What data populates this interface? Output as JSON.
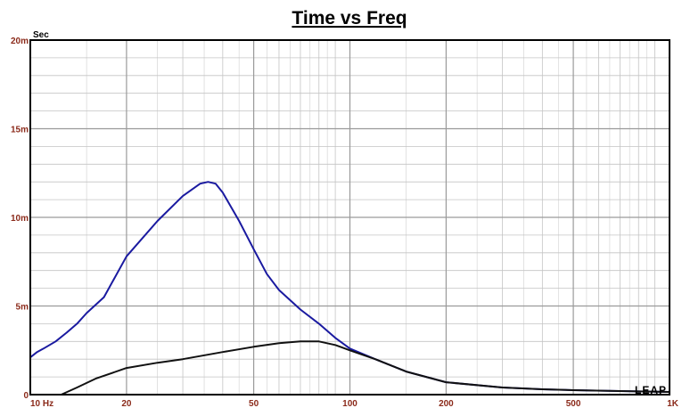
{
  "chart_data": {
    "type": "line",
    "title": "Time vs Freq",
    "ylabel": "Sec",
    "xlabel": "",
    "x_scale": "log",
    "xlim": [
      10,
      1000
    ],
    "ylim": [
      0,
      0.02
    ],
    "grid": true,
    "x_tick_labels": [
      {
        "value": 10,
        "label": "10 Hz"
      },
      {
        "value": 20,
        "label": "20"
      },
      {
        "value": 50,
        "label": "50"
      },
      {
        "value": 100,
        "label": "100"
      },
      {
        "value": 200,
        "label": "200"
      },
      {
        "value": 500,
        "label": "500"
      },
      {
        "value": 1000,
        "label": "1K"
      }
    ],
    "y_tick_labels": [
      {
        "value": 0,
        "label": "0"
      },
      {
        "value": 0.005,
        "label": "5m"
      },
      {
        "value": 0.01,
        "label": "10m"
      },
      {
        "value": 0.015,
        "label": "15m"
      },
      {
        "value": 0.02,
        "label": "20m"
      }
    ],
    "series": [
      {
        "color": "#1a1aa0",
        "x": [
          10,
          10.5,
          11,
          12,
          13,
          14,
          15,
          17,
          20,
          25,
          30,
          34,
          36,
          38,
          40,
          45,
          50,
          55,
          60,
          70,
          80,
          90,
          100,
          120,
          150,
          200,
          300,
          400,
          500,
          700,
          1000
        ],
        "y": [
          0.0021,
          0.0024,
          0.0026,
          0.003,
          0.0035,
          0.004,
          0.0046,
          0.0055,
          0.0078,
          0.0098,
          0.0112,
          0.0119,
          0.012,
          0.0119,
          0.0114,
          0.0098,
          0.0082,
          0.0068,
          0.0059,
          0.0048,
          0.004,
          0.0032,
          0.0026,
          0.002,
          0.0013,
          0.0007,
          0.0004,
          0.0003,
          0.00025,
          0.0002,
          0.00015
        ]
      },
      {
        "color": "#111111",
        "x": [
          12.5,
          14,
          16,
          20,
          25,
          30,
          40,
          50,
          60,
          70,
          75,
          80,
          90,
          100,
          120,
          150,
          200,
          300,
          400,
          500,
          700,
          1000
        ],
        "y": [
          0,
          0.0004,
          0.0009,
          0.0015,
          0.0018,
          0.002,
          0.0024,
          0.0027,
          0.0029,
          0.003,
          0.003,
          0.003,
          0.0028,
          0.0025,
          0.002,
          0.0013,
          0.0007,
          0.0004,
          0.0003,
          0.00025,
          0.0002,
          0.00015
        ]
      }
    ]
  },
  "logo": "LEAP"
}
